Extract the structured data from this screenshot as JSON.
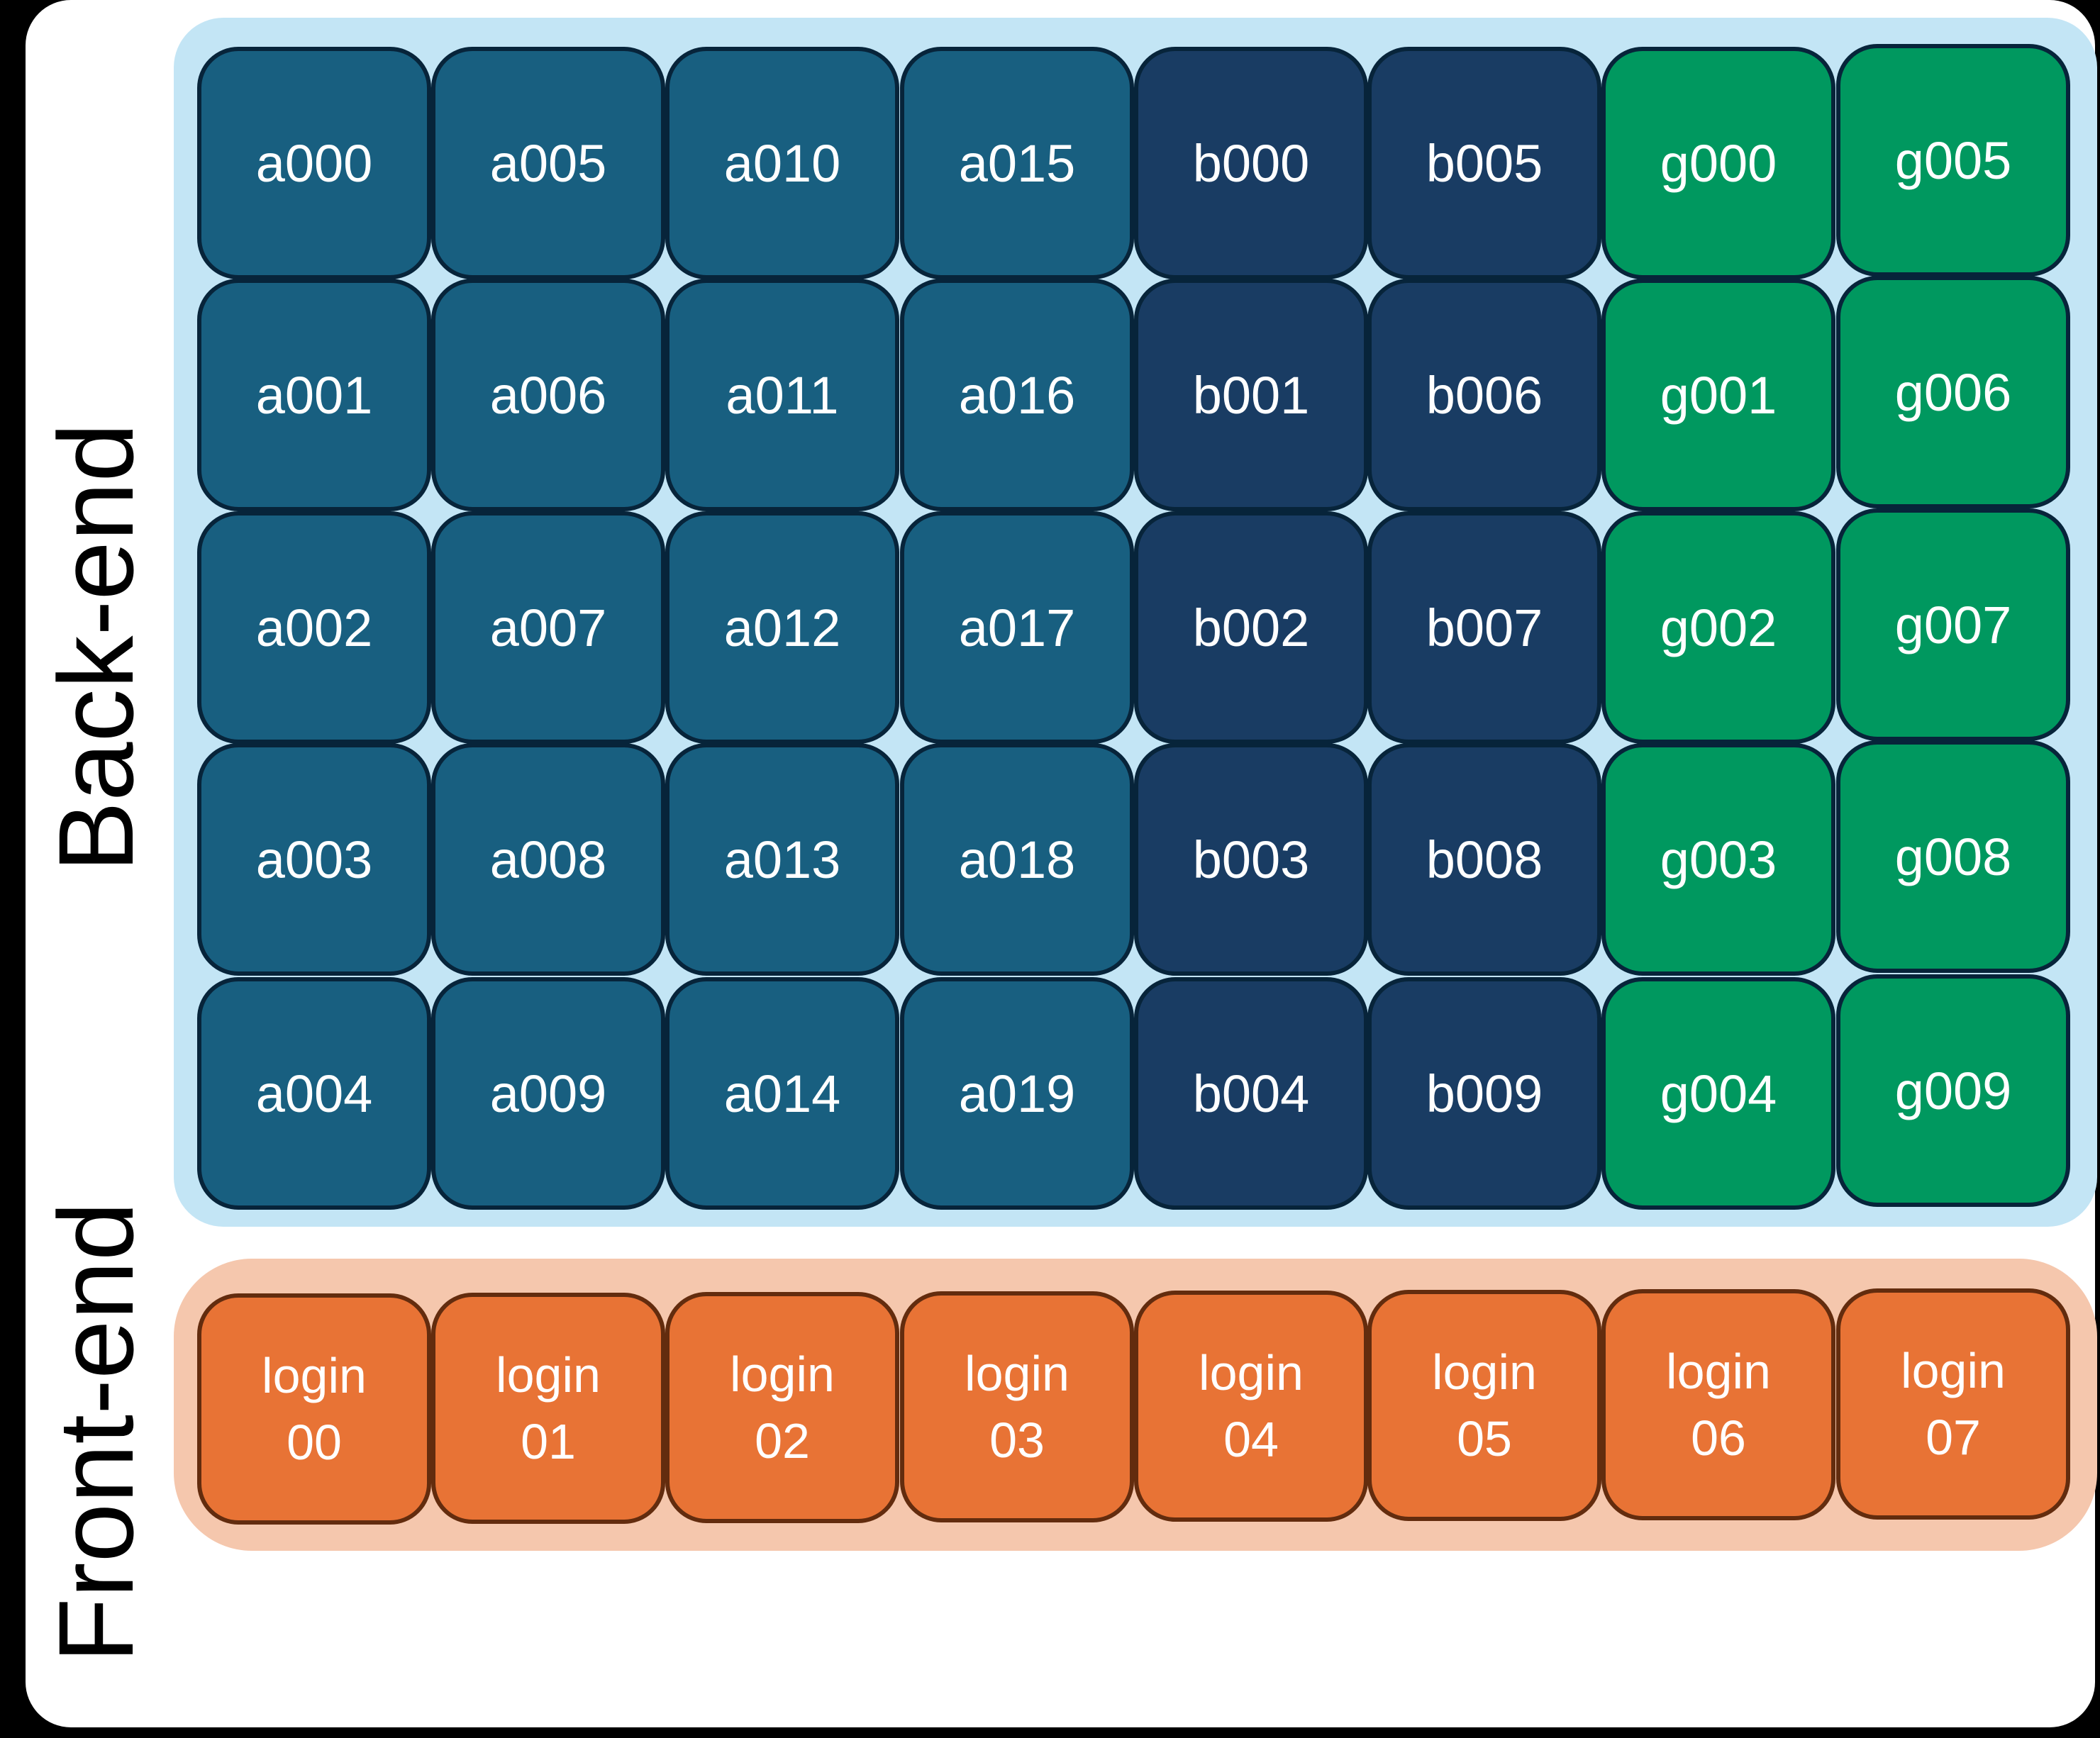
{
  "labels": {
    "back_end": "Back-end",
    "front_end": "Front-end"
  },
  "colors": {
    "a_group": "#185f80",
    "b_group": "#193c63",
    "g_group": "#00985f",
    "login_group": "#e87335",
    "back_end_panel": "#c3e5f5",
    "front_end_panel": "#f5c7ad"
  },
  "back_end": {
    "columns": [
      {
        "group": "a",
        "nodes": [
          "a000",
          "a001",
          "a002",
          "a003",
          "a004"
        ]
      },
      {
        "group": "a",
        "nodes": [
          "a005",
          "a006",
          "a007",
          "a008",
          "a009"
        ]
      },
      {
        "group": "a",
        "nodes": [
          "a010",
          "a011",
          "a012",
          "a013",
          "a014"
        ]
      },
      {
        "group": "a",
        "nodes": [
          "a015",
          "a016",
          "a017",
          "a018",
          "a019"
        ]
      },
      {
        "group": "b",
        "nodes": [
          "b000",
          "b001",
          "b002",
          "b003",
          "b004"
        ]
      },
      {
        "group": "b",
        "nodes": [
          "b005",
          "b006",
          "b007",
          "b008",
          "b009"
        ]
      },
      {
        "group": "g",
        "nodes": [
          "g000",
          "g001",
          "g002",
          "g003",
          "g004"
        ]
      },
      {
        "group": "g",
        "nodes": [
          "g005",
          "g006",
          "g007",
          "g008",
          "g009"
        ]
      }
    ]
  },
  "front_end": {
    "nodes": [
      {
        "line1": "login",
        "line2": "00"
      },
      {
        "line1": "login",
        "line2": "01"
      },
      {
        "line1": "login",
        "line2": "02"
      },
      {
        "line1": "login",
        "line2": "03"
      },
      {
        "line1": "login",
        "line2": "04"
      },
      {
        "line1": "login",
        "line2": "05"
      },
      {
        "line1": "login",
        "line2": "06"
      },
      {
        "line1": "login",
        "line2": "07"
      }
    ]
  }
}
